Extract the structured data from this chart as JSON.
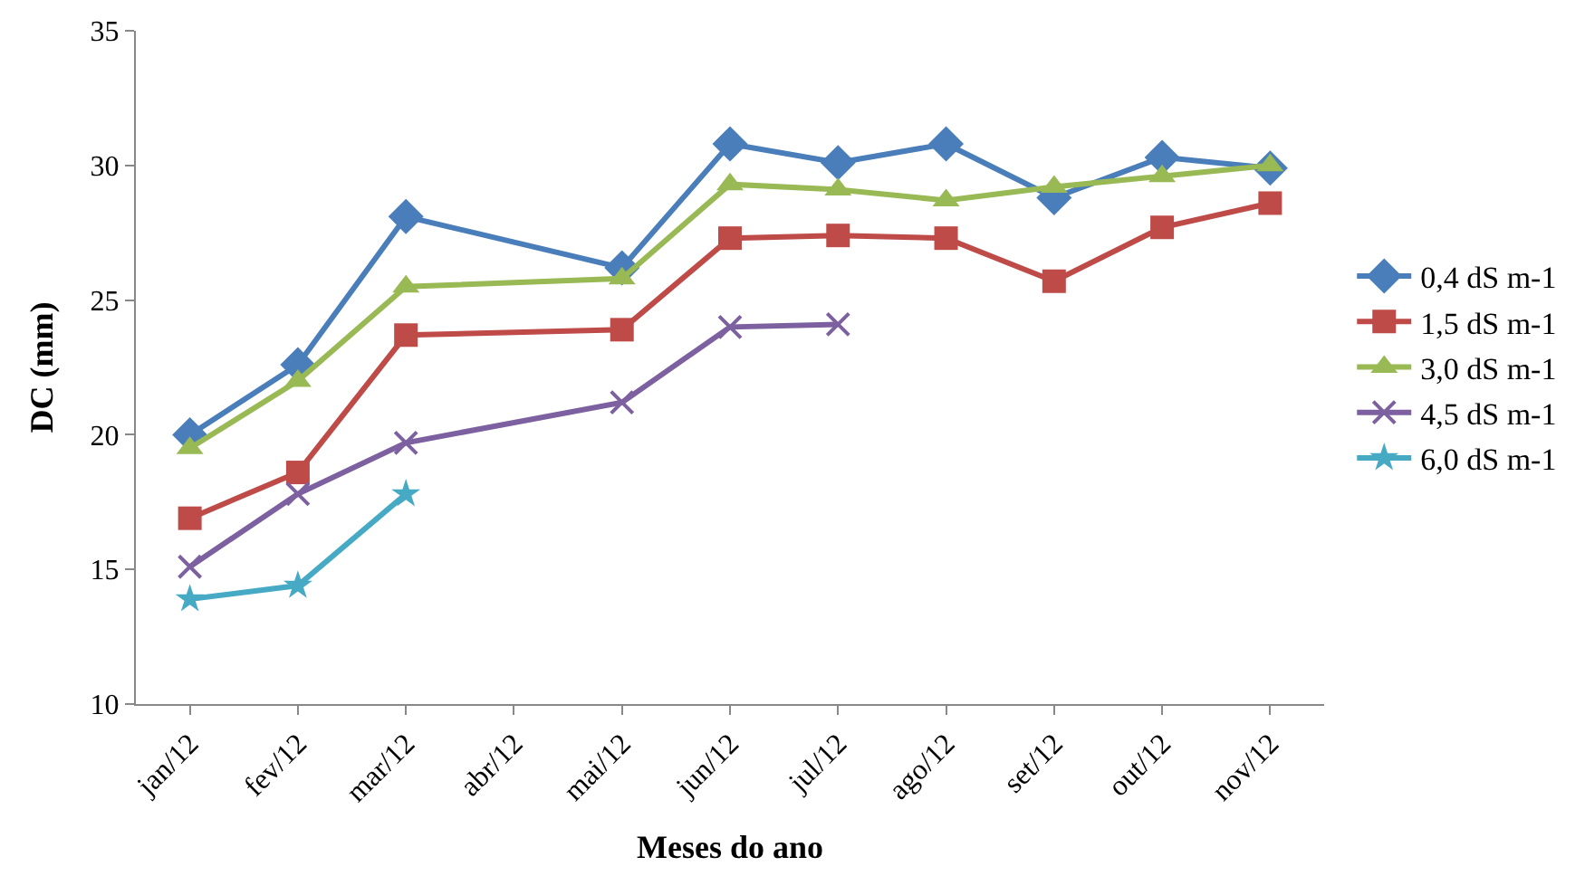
{
  "chart_data": {
    "type": "line",
    "xlabel": "Meses do ano",
    "ylabel": "DC (mm)",
    "categories": [
      "jan/12",
      "fev/12",
      "mar/12",
      "abr/12",
      "mai/12",
      "jun/12",
      "jul/12",
      "ago/12",
      "set/12",
      "out/12",
      "nov/12"
    ],
    "series": [
      {
        "name": "0,4 dS m-1",
        "color": "#4a7ebb",
        "marker": "diamond",
        "values": [
          20.0,
          22.6,
          28.1,
          null,
          26.2,
          30.8,
          30.1,
          30.8,
          28.8,
          30.3,
          29.9
        ]
      },
      {
        "name": "1,5 dS m-1",
        "color": "#be4b48",
        "marker": "square",
        "values": [
          16.9,
          18.6,
          23.7,
          null,
          23.9,
          27.3,
          27.4,
          27.3,
          25.7,
          27.7,
          28.6
        ]
      },
      {
        "name": "3,0 dS m-1",
        "color": "#98b954",
        "marker": "triangle",
        "values": [
          19.5,
          22.0,
          25.5,
          null,
          25.8,
          29.3,
          29.1,
          28.7,
          29.2,
          29.6,
          30.0
        ]
      },
      {
        "name": "4,5 dS m-1",
        "color": "#7d60a0",
        "marker": "cross",
        "values": [
          15.1,
          17.8,
          19.7,
          null,
          21.2,
          24.0,
          24.1,
          null,
          null,
          null,
          null
        ]
      },
      {
        "name": "6,0 dS m-1",
        "color": "#46aac5",
        "marker": "star",
        "values": [
          13.9,
          14.4,
          17.8,
          null,
          null,
          null,
          null,
          null,
          null,
          null,
          null
        ]
      }
    ],
    "ylim": [
      10,
      35
    ],
    "yticks": [
      10,
      15,
      20,
      25,
      30,
      35
    ],
    "grid": false,
    "legend": "right",
    "line_style": "solid"
  }
}
